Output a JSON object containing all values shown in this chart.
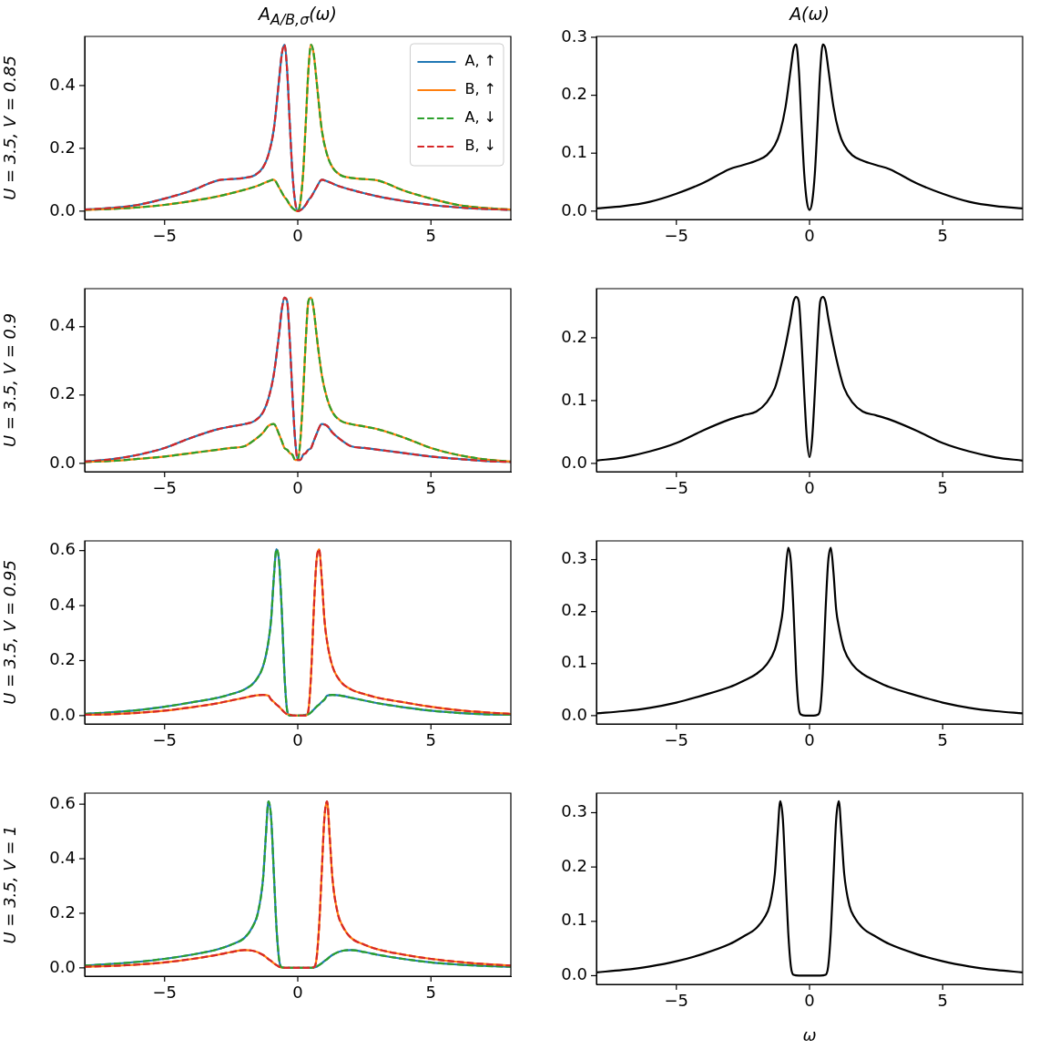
{
  "chart_data": [
    {
      "type": "line",
      "title": "A$_{A/B,σ}$(ω)",
      "ylabel": "U = 3.5, V = 0.85",
      "legend": "top right",
      "grid": false,
      "x": [
        -8,
        -7,
        -6,
        -5,
        -4,
        -3,
        -2.5,
        -2,
        -1.6,
        -1.3,
        -1.1,
        -0.9,
        -0.7,
        -0.6,
        -0.5,
        -0.4,
        -0.3,
        -0.2,
        -0.1,
        0,
        0.1,
        0.2,
        0.3,
        0.4,
        0.5,
        0.6,
        0.7,
        0.9,
        1.1,
        1.3,
        1.6,
        2,
        2.5,
        3,
        4,
        5,
        6,
        7,
        8
      ],
      "xlim": [
        -8,
        8
      ],
      "xticks": [
        {
          "value": -5,
          "label": "−5"
        },
        {
          "value": 0,
          "label": "0"
        },
        {
          "value": 5,
          "label": "5"
        }
      ],
      "ylim": [
        -0.0265,
        0.5565
      ],
      "yticks": [
        {
          "value": 0,
          "label": "0.0"
        },
        {
          "value": 0.2,
          "label": "0.2"
        },
        {
          "value": 0.4,
          "label": "0.4"
        }
      ],
      "series": [
        {
          "name": "A, ↑",
          "color": "#1f77b4",
          "values": [
            0.005,
            0.01,
            0.02,
            0.04,
            0.065,
            0.098,
            0.102,
            0.106,
            0.115,
            0.14,
            0.18,
            0.26,
            0.42,
            0.5,
            0.53,
            0.45,
            0.28,
            0.12,
            0.03,
            0,
            0.003,
            0.01,
            0.02,
            0.035,
            0.045,
            0.06,
            0.075,
            0.1,
            0.095,
            0.088,
            0.078,
            0.068,
            0.057,
            0.047,
            0.032,
            0.02,
            0.012,
            0.007,
            0.004
          ]
        },
        {
          "name": "B, ↑",
          "color": "#ff7f0e",
          "values": [
            0.004,
            0.007,
            0.012,
            0.02,
            0.032,
            0.047,
            0.057,
            0.068,
            0.078,
            0.088,
            0.095,
            0.1,
            0.075,
            0.06,
            0.045,
            0.035,
            0.02,
            0.01,
            0.003,
            0,
            0.03,
            0.12,
            0.28,
            0.45,
            0.53,
            0.5,
            0.42,
            0.26,
            0.18,
            0.14,
            0.115,
            0.106,
            0.102,
            0.098,
            0.065,
            0.04,
            0.02,
            0.01,
            0.005
          ]
        },
        {
          "name": "A, ↓",
          "color": "#2ca02c",
          "line_style": "dashed",
          "values": [
            0.004,
            0.007,
            0.012,
            0.02,
            0.032,
            0.047,
            0.057,
            0.068,
            0.078,
            0.088,
            0.095,
            0.1,
            0.075,
            0.06,
            0.045,
            0.035,
            0.02,
            0.01,
            0.003,
            0,
            0.03,
            0.12,
            0.28,
            0.45,
            0.53,
            0.5,
            0.42,
            0.26,
            0.18,
            0.14,
            0.115,
            0.106,
            0.102,
            0.098,
            0.065,
            0.04,
            0.02,
            0.01,
            0.005
          ]
        },
        {
          "name": "B, ↓",
          "color": "#d62728",
          "line_style": "dashed",
          "values": [
            0.005,
            0.01,
            0.02,
            0.04,
            0.065,
            0.098,
            0.102,
            0.106,
            0.115,
            0.14,
            0.18,
            0.26,
            0.42,
            0.5,
            0.53,
            0.45,
            0.28,
            0.12,
            0.03,
            0,
            0.003,
            0.01,
            0.02,
            0.035,
            0.045,
            0.06,
            0.075,
            0.1,
            0.095,
            0.088,
            0.078,
            0.068,
            0.057,
            0.047,
            0.032,
            0.02,
            0.012,
            0.007,
            0.004
          ]
        }
      ]
    },
    {
      "type": "line",
      "title": "A(ω)",
      "grid": false,
      "x": [
        -8,
        -7,
        -6,
        -5,
        -4,
        -3,
        -2.5,
        -2,
        -1.6,
        -1.3,
        -1.1,
        -0.9,
        -0.7,
        -0.6,
        -0.5,
        -0.4,
        -0.3,
        -0.2,
        -0.1,
        0,
        0.1,
        0.2,
        0.3,
        0.4,
        0.5,
        0.6,
        0.7,
        0.9,
        1.1,
        1.3,
        1.6,
        2,
        2.5,
        3,
        4,
        5,
        6,
        7,
        8
      ],
      "xlim": [
        -8,
        8
      ],
      "xticks": [
        {
          "value": -5,
          "label": "−5"
        },
        {
          "value": 0,
          "label": "0"
        },
        {
          "value": 5,
          "label": "5"
        }
      ],
      "ylim": [
        -0.0144,
        0.3015
      ],
      "yticks": [
        {
          "value": 0,
          "label": "0.0"
        },
        {
          "value": 0.1,
          "label": "0.1"
        },
        {
          "value": 0.2,
          "label": "0.2"
        },
        {
          "value": 0.3,
          "label": "0.3"
        }
      ],
      "series": [
        {
          "color": "#000000",
          "values": [
            0.0045,
            0.0085,
            0.016,
            0.03,
            0.0485,
            0.0725,
            0.0795,
            0.087,
            0.0965,
            0.114,
            0.1375,
            0.18,
            0.2475,
            0.28,
            0.2875,
            0.2425,
            0.15,
            0.065,
            0.0165,
            0.002,
            0.0165,
            0.065,
            0.15,
            0.2425,
            0.2875,
            0.28,
            0.2475,
            0.18,
            0.1375,
            0.114,
            0.0965,
            0.087,
            0.0795,
            0.0725,
            0.0485,
            0.03,
            0.016,
            0.0085,
            0.0045
          ]
        }
      ]
    },
    {
      "type": "line",
      "ylabel": "U = 3.5, V = 0.9",
      "grid": false,
      "x": [
        -8,
        -7,
        -6,
        -5,
        -4,
        -3,
        -2.5,
        -2,
        -1.6,
        -1.3,
        -1.1,
        -0.9,
        -0.7,
        -0.6,
        -0.5,
        -0.4,
        -0.3,
        -0.2,
        -0.1,
        0,
        0.1,
        0.2,
        0.3,
        0.4,
        0.5,
        0.6,
        0.7,
        0.9,
        1.1,
        1.3,
        1.6,
        2,
        2.5,
        3,
        4,
        5,
        6,
        7,
        8
      ],
      "xlim": [
        -8,
        8
      ],
      "xticks": [
        {
          "value": -5,
          "label": "−5"
        },
        {
          "value": 0,
          "label": "0"
        },
        {
          "value": 5,
          "label": "5"
        }
      ],
      "ylim": [
        -0.0244,
        0.5114
      ],
      "yticks": [
        {
          "value": 0,
          "label": "0.0"
        },
        {
          "value": 0.2,
          "label": "0.2"
        },
        {
          "value": 0.4,
          "label": "0.4"
        }
      ],
      "series": [
        {
          "color": "#1f77b4",
          "values": [
            0.005,
            0.012,
            0.025,
            0.045,
            0.075,
            0.1,
            0.108,
            0.115,
            0.125,
            0.15,
            0.19,
            0.26,
            0.38,
            0.45,
            0.485,
            0.475,
            0.36,
            0.2,
            0.07,
            0.01,
            0.01,
            0.025,
            0.03,
            0.04,
            0.045,
            0.065,
            0.085,
            0.115,
            0.11,
            0.09,
            0.07,
            0.05,
            0.045,
            0.04,
            0.03,
            0.02,
            0.013,
            0.007,
            0.004
          ]
        },
        {
          "color": "#ff7f0e",
          "values": [
            0.004,
            0.007,
            0.013,
            0.02,
            0.03,
            0.04,
            0.045,
            0.05,
            0.07,
            0.09,
            0.11,
            0.115,
            0.085,
            0.065,
            0.045,
            0.04,
            0.03,
            0.025,
            0.01,
            0.01,
            0.07,
            0.2,
            0.36,
            0.475,
            0.485,
            0.45,
            0.38,
            0.26,
            0.19,
            0.15,
            0.125,
            0.115,
            0.108,
            0.1,
            0.075,
            0.045,
            0.025,
            0.012,
            0.005
          ]
        },
        {
          "color": "#2ca02c",
          "line_style": "dashed",
          "values": [
            0.004,
            0.007,
            0.013,
            0.02,
            0.03,
            0.04,
            0.045,
            0.05,
            0.07,
            0.09,
            0.11,
            0.115,
            0.085,
            0.065,
            0.045,
            0.04,
            0.03,
            0.025,
            0.01,
            0.01,
            0.07,
            0.2,
            0.36,
            0.475,
            0.485,
            0.45,
            0.38,
            0.26,
            0.19,
            0.15,
            0.125,
            0.115,
            0.108,
            0.1,
            0.075,
            0.045,
            0.025,
            0.012,
            0.005
          ]
        },
        {
          "color": "#d62728",
          "line_style": "dashed",
          "values": [
            0.005,
            0.012,
            0.025,
            0.045,
            0.075,
            0.1,
            0.108,
            0.115,
            0.125,
            0.15,
            0.19,
            0.26,
            0.38,
            0.45,
            0.485,
            0.475,
            0.36,
            0.2,
            0.07,
            0.01,
            0.01,
            0.025,
            0.03,
            0.04,
            0.045,
            0.065,
            0.085,
            0.115,
            0.11,
            0.09,
            0.07,
            0.05,
            0.045,
            0.04,
            0.03,
            0.02,
            0.013,
            0.007,
            0.004
          ]
        }
      ]
    },
    {
      "type": "line",
      "grid": false,
      "x": [
        -8,
        -7,
        -6,
        -5,
        -4,
        -3,
        -2.5,
        -2,
        -1.6,
        -1.3,
        -1.1,
        -0.9,
        -0.7,
        -0.6,
        -0.5,
        -0.4,
        -0.3,
        -0.2,
        -0.1,
        0,
        0.1,
        0.2,
        0.3,
        0.4,
        0.5,
        0.6,
        0.7,
        0.9,
        1.1,
        1.3,
        1.6,
        2,
        2.5,
        3,
        4,
        5,
        6,
        7,
        8
      ],
      "xlim": [
        -8,
        8
      ],
      "xticks": [
        {
          "value": -5,
          "label": "−5"
        },
        {
          "value": 0,
          "label": "0"
        },
        {
          "value": 5,
          "label": "5"
        }
      ],
      "ylim": [
        -0.0132,
        0.2782
      ],
      "yticks": [
        {
          "value": 0,
          "label": "0.0"
        },
        {
          "value": 0.1,
          "label": "0.1"
        },
        {
          "value": 0.2,
          "label": "0.2"
        }
      ],
      "series": [
        {
          "color": "#000000",
          "values": [
            0.0045,
            0.0095,
            0.019,
            0.0325,
            0.0525,
            0.07,
            0.0765,
            0.0825,
            0.0975,
            0.12,
            0.15,
            0.1875,
            0.2325,
            0.2575,
            0.265,
            0.2575,
            0.195,
            0.1125,
            0.04,
            0.01,
            0.04,
            0.1125,
            0.195,
            0.2575,
            0.265,
            0.2575,
            0.2325,
            0.1875,
            0.15,
            0.12,
            0.0975,
            0.0825,
            0.0765,
            0.07,
            0.0525,
            0.0325,
            0.019,
            0.0095,
            0.0045
          ]
        }
      ]
    },
    {
      "type": "line",
      "ylabel": "U = 3.5, V = 0.95",
      "grid": false,
      "x": [
        -8,
        -7,
        -6,
        -5,
        -4,
        -3,
        -2.5,
        -2,
        -1.6,
        -1.3,
        -1.1,
        -1,
        -0.9,
        -0.8,
        -0.7,
        -0.6,
        -0.5,
        -0.4,
        -0.3,
        -0.15,
        0,
        0.15,
        0.3,
        0.4,
        0.5,
        0.6,
        0.7,
        0.8,
        0.9,
        1,
        1.1,
        1.3,
        1.6,
        2,
        2.5,
        3,
        4,
        5,
        6,
        7,
        8
      ],
      "xlim": [
        -8,
        8
      ],
      "xticks": [
        {
          "value": -5,
          "label": "−5"
        },
        {
          "value": 0,
          "label": "0"
        },
        {
          "value": 5,
          "label": "5"
        }
      ],
      "ylim": [
        -0.0303,
        0.6353
      ],
      "yticks": [
        {
          "value": 0,
          "label": "0.0"
        },
        {
          "value": 0.2,
          "label": "0.2"
        },
        {
          "value": 0.4,
          "label": "0.4"
        },
        {
          "value": 0.6,
          "label": "0.6"
        }
      ],
      "series": [
        {
          "color": "#1f77b4",
          "values": [
            0.006,
            0.012,
            0.02,
            0.032,
            0.048,
            0.065,
            0.078,
            0.095,
            0.125,
            0.18,
            0.27,
            0.35,
            0.5,
            0.605,
            0.56,
            0.38,
            0.15,
            0.02,
            0,
            0,
            0,
            0,
            0.003,
            0.005,
            0.012,
            0.022,
            0.032,
            0.04,
            0.05,
            0.058,
            0.072,
            0.075,
            0.073,
            0.065,
            0.055,
            0.045,
            0.03,
            0.018,
            0.01,
            0.005,
            0.003
          ]
        },
        {
          "color": "#ff7f0e",
          "values": [
            0.003,
            0.005,
            0.01,
            0.018,
            0.03,
            0.045,
            0.055,
            0.065,
            0.073,
            0.075,
            0.072,
            0.058,
            0.05,
            0.04,
            0.032,
            0.022,
            0.012,
            0.005,
            0.003,
            0,
            0,
            0,
            0,
            0.02,
            0.15,
            0.38,
            0.56,
            0.605,
            0.5,
            0.35,
            0.27,
            0.18,
            0.125,
            0.095,
            0.078,
            0.065,
            0.048,
            0.032,
            0.02,
            0.012,
            0.006
          ]
        },
        {
          "color": "#2ca02c",
          "line_style": "dashed",
          "values": [
            0.006,
            0.012,
            0.02,
            0.032,
            0.048,
            0.065,
            0.078,
            0.095,
            0.125,
            0.18,
            0.27,
            0.35,
            0.5,
            0.605,
            0.56,
            0.38,
            0.15,
            0.02,
            0,
            0,
            0,
            0,
            0.003,
            0.005,
            0.012,
            0.022,
            0.032,
            0.04,
            0.05,
            0.058,
            0.072,
            0.075,
            0.073,
            0.065,
            0.055,
            0.045,
            0.03,
            0.018,
            0.01,
            0.005,
            0.003
          ]
        },
        {
          "color": "#d62728",
          "line_style": "dashed",
          "values": [
            0.003,
            0.005,
            0.01,
            0.018,
            0.03,
            0.045,
            0.055,
            0.065,
            0.073,
            0.075,
            0.072,
            0.058,
            0.05,
            0.04,
            0.032,
            0.022,
            0.012,
            0.005,
            0.003,
            0,
            0,
            0,
            0,
            0.02,
            0.15,
            0.38,
            0.56,
            0.605,
            0.5,
            0.35,
            0.27,
            0.18,
            0.125,
            0.095,
            0.078,
            0.065,
            0.048,
            0.032,
            0.02,
            0.012,
            0.006
          ]
        }
      ]
    },
    {
      "type": "line",
      "grid": false,
      "x": [
        -8,
        -7,
        -6,
        -5,
        -4,
        -3,
        -2.5,
        -2,
        -1.6,
        -1.3,
        -1.1,
        -1,
        -0.9,
        -0.8,
        -0.7,
        -0.6,
        -0.5,
        -0.4,
        -0.3,
        -0.15,
        0,
        0.15,
        0.3,
        0.4,
        0.5,
        0.6,
        0.7,
        0.8,
        0.9,
        1,
        1.1,
        1.3,
        1.6,
        2,
        2.5,
        3,
        4,
        5,
        6,
        7,
        8
      ],
      "xlim": [
        -8,
        8
      ],
      "xticks": [
        {
          "value": -5,
          "label": "−5"
        },
        {
          "value": 0,
          "label": "0"
        },
        {
          "value": 5,
          "label": "5"
        }
      ],
      "ylim": [
        -0.016,
        0.336
      ],
      "yticks": [
        {
          "value": 0,
          "label": "0.0"
        },
        {
          "value": 0.1,
          "label": "0.1"
        },
        {
          "value": 0.2,
          "label": "0.2"
        },
        {
          "value": 0.3,
          "label": "0.3"
        }
      ],
      "series": [
        {
          "color": "#000000",
          "values": [
            0.0045,
            0.0085,
            0.015,
            0.025,
            0.039,
            0.055,
            0.0665,
            0.08,
            0.099,
            0.1275,
            0.171,
            0.204,
            0.275,
            0.3225,
            0.296,
            0.201,
            0.081,
            0.0125,
            0.0015,
            0,
            0,
            0,
            0.0015,
            0.0125,
            0.081,
            0.201,
            0.296,
            0.3225,
            0.275,
            0.204,
            0.171,
            0.1275,
            0.099,
            0.08,
            0.0665,
            0.055,
            0.039,
            0.025,
            0.015,
            0.0085,
            0.0045
          ]
        }
      ]
    },
    {
      "type": "line",
      "ylabel": "U = 3.5, V = 1",
      "grid": false,
      "x": [
        -8,
        -7,
        -6,
        -5,
        -4,
        -3,
        -2.5,
        -2,
        -1.7,
        -1.5,
        -1.3,
        -1.2,
        -1.1,
        -1,
        -0.9,
        -0.8,
        -0.7,
        -0.6,
        -0.4,
        -0.2,
        0,
        0.2,
        0.4,
        0.6,
        0.7,
        0.8,
        0.9,
        1,
        1.1,
        1.2,
        1.3,
        1.5,
        1.7,
        2,
        2.5,
        3,
        4,
        5,
        6,
        7,
        8
      ],
      "xlim": [
        -8,
        8
      ],
      "xticks": [
        {
          "value": -5,
          "label": "−5"
        },
        {
          "value": 0,
          "label": "0"
        },
        {
          "value": 5,
          "label": "5"
        }
      ],
      "ylim": [
        -0.0305,
        0.6405
      ],
      "yticks": [
        {
          "value": 0,
          "label": "0.0"
        },
        {
          "value": 0.2,
          "label": "0.2"
        },
        {
          "value": 0.4,
          "label": "0.4"
        },
        {
          "value": 0.6,
          "label": "0.6"
        }
      ],
      "series": [
        {
          "color": "#1f77b4",
          "values": [
            0.008,
            0.014,
            0.022,
            0.033,
            0.048,
            0.068,
            0.085,
            0.11,
            0.15,
            0.2,
            0.33,
            0.48,
            0.61,
            0.55,
            0.35,
            0.15,
            0.03,
            0.002,
            0,
            0,
            0,
            0,
            0,
            0.001,
            0.004,
            0.01,
            0.017,
            0.025,
            0.032,
            0.04,
            0.047,
            0.057,
            0.063,
            0.065,
            0.058,
            0.048,
            0.032,
            0.02,
            0.012,
            0.007,
            0.004
          ]
        },
        {
          "color": "#ff7f0e",
          "values": [
            0.004,
            0.007,
            0.012,
            0.02,
            0.032,
            0.048,
            0.058,
            0.065,
            0.063,
            0.057,
            0.047,
            0.04,
            0.032,
            0.025,
            0.017,
            0.01,
            0.004,
            0.001,
            0,
            0,
            0,
            0,
            0,
            0.002,
            0.03,
            0.15,
            0.35,
            0.55,
            0.61,
            0.48,
            0.33,
            0.2,
            0.15,
            0.11,
            0.085,
            0.068,
            0.048,
            0.033,
            0.022,
            0.014,
            0.008
          ]
        },
        {
          "color": "#2ca02c",
          "line_style": "dashed",
          "values": [
            0.008,
            0.014,
            0.022,
            0.033,
            0.048,
            0.068,
            0.085,
            0.11,
            0.15,
            0.2,
            0.33,
            0.48,
            0.61,
            0.55,
            0.35,
            0.15,
            0.03,
            0.002,
            0,
            0,
            0,
            0,
            0,
            0.001,
            0.004,
            0.01,
            0.017,
            0.025,
            0.032,
            0.04,
            0.047,
            0.057,
            0.063,
            0.065,
            0.058,
            0.048,
            0.032,
            0.02,
            0.012,
            0.007,
            0.004
          ]
        },
        {
          "color": "#d62728",
          "line_style": "dashed",
          "values": [
            0.004,
            0.007,
            0.012,
            0.02,
            0.032,
            0.048,
            0.058,
            0.065,
            0.063,
            0.057,
            0.047,
            0.04,
            0.032,
            0.025,
            0.017,
            0.01,
            0.004,
            0.001,
            0,
            0,
            0,
            0,
            0,
            0.002,
            0.03,
            0.15,
            0.35,
            0.55,
            0.61,
            0.48,
            0.33,
            0.2,
            0.15,
            0.11,
            0.085,
            0.068,
            0.048,
            0.033,
            0.022,
            0.014,
            0.008
          ]
        }
      ]
    },
    {
      "type": "line",
      "xlabel": "ω",
      "grid": false,
      "x": [
        -8,
        -7,
        -6,
        -5,
        -4,
        -3,
        -2.5,
        -2,
        -1.7,
        -1.5,
        -1.3,
        -1.2,
        -1.1,
        -1,
        -0.9,
        -0.8,
        -0.7,
        -0.6,
        -0.4,
        -0.2,
        0,
        0.2,
        0.4,
        0.6,
        0.7,
        0.8,
        0.9,
        1,
        1.1,
        1.2,
        1.3,
        1.5,
        1.7,
        2,
        2.5,
        3,
        4,
        5,
        6,
        7,
        8
      ],
      "xlim": [
        -8,
        8
      ],
      "xticks": [
        {
          "value": -5,
          "label": "−5"
        },
        {
          "value": 0,
          "label": "0"
        },
        {
          "value": 5,
          "label": "5"
        }
      ],
      "ylim": [
        -0.016,
        0.336
      ],
      "yticks": [
        {
          "value": 0,
          "label": "0.0"
        },
        {
          "value": 0.1,
          "label": "0.1"
        },
        {
          "value": 0.2,
          "label": "0.2"
        },
        {
          "value": 0.3,
          "label": "0.3"
        }
      ],
      "series": [
        {
          "color": "#000000",
          "values": [
            0.006,
            0.0105,
            0.017,
            0.0265,
            0.04,
            0.058,
            0.0715,
            0.0875,
            0.1065,
            0.1285,
            0.1885,
            0.26,
            0.321,
            0.2875,
            0.1835,
            0.08,
            0.017,
            0.0015,
            0,
            0,
            0,
            0,
            0,
            0.0015,
            0.017,
            0.08,
            0.1835,
            0.2875,
            0.321,
            0.26,
            0.1885,
            0.1285,
            0.1065,
            0.0875,
            0.0715,
            0.058,
            0.04,
            0.0265,
            0.017,
            0.0105,
            0.006
          ]
        }
      ]
    }
  ]
}
